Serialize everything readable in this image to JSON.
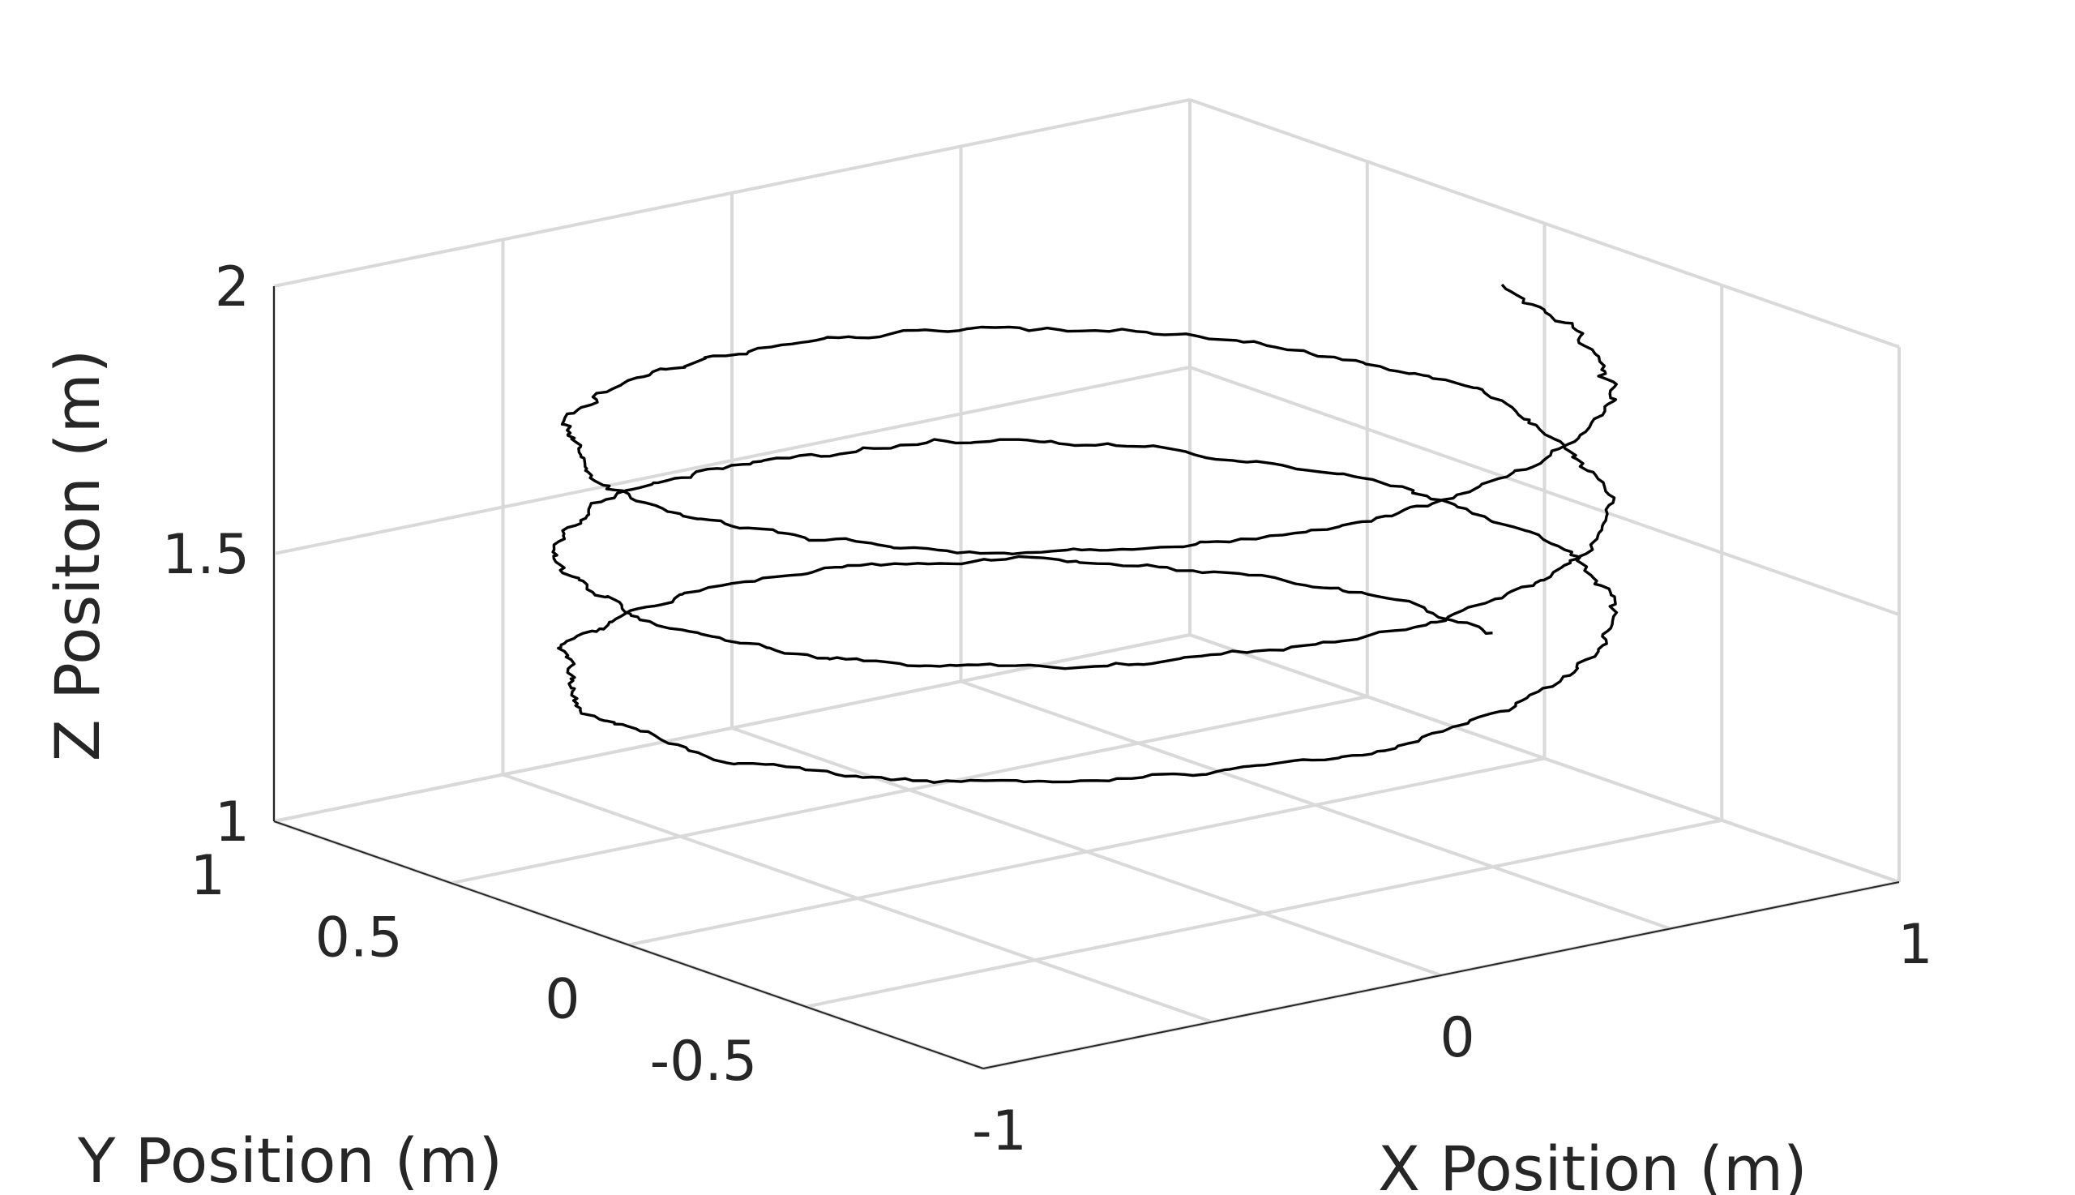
{
  "chart_data": {
    "type": "line",
    "projection": "3d",
    "title": "",
    "xlabel": "X Position (m)",
    "ylabel": "Y Position (m)",
    "zlabel": "Z Positon (m)",
    "xlim": [
      -1,
      1
    ],
    "ylim": [
      -1,
      1
    ],
    "zlim": [
      1,
      2
    ],
    "xticks": [
      -1,
      0,
      1
    ],
    "xtick_labels": [
      "-1",
      "0",
      "1"
    ],
    "yticks": [
      -0.5,
      0,
      0.5,
      1
    ],
    "ytick_labels": [
      "-0.5",
      "0",
      "0.5",
      "1"
    ],
    "zticks": [
      1,
      1.5,
      2
    ],
    "ztick_labels": [
      "1",
      "1.5",
      "2"
    ],
    "grid": true,
    "series": [
      {
        "color": "#000000",
        "description_values": {
          "shape": "noisy helix",
          "radius": 0.9,
          "turns": 3,
          "z_start": 1.25,
          "z_end": 1.9
        },
        "points": [
          [
            0.9,
            0.0,
            1.25
          ],
          [
            0.0,
            0.9,
            1.33
          ],
          [
            -0.9,
            0.0,
            1.42
          ],
          [
            0.0,
            -0.9,
            1.5
          ],
          [
            0.9,
            0.0,
            1.47
          ],
          [
            0.0,
            0.9,
            1.55
          ],
          [
            -0.9,
            0.0,
            1.63
          ],
          [
            0.0,
            -0.9,
            1.72
          ],
          [
            0.9,
            0.0,
            1.68
          ],
          [
            0.0,
            0.9,
            1.76
          ],
          [
            -0.9,
            0.0,
            1.84
          ],
          [
            0.0,
            -0.9,
            1.9
          ]
        ]
      }
    ]
  }
}
